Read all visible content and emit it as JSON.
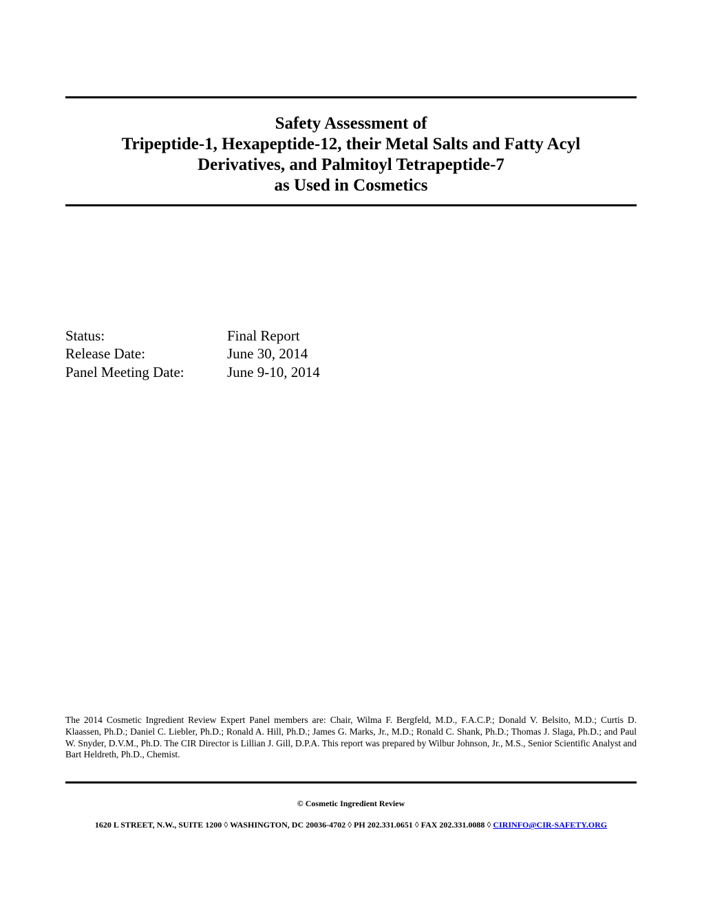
{
  "title": {
    "line1": "Safety Assessment of",
    "line2": "Tripeptide-1, Hexapeptide-12, their Metal Salts and Fatty Acyl",
    "line3": "Derivatives, and Palmitoyl Tetrapeptide-7",
    "line4": "as Used in Cosmetics"
  },
  "meta": {
    "status_label": "Status:",
    "status_value": "Final Report",
    "release_label": "Release Date:",
    "release_value": "June 30, 2014",
    "panel_label": "Panel Meeting Date:",
    "panel_value": "June 9-10, 2014"
  },
  "panel_credit": "The 2014 Cosmetic Ingredient Review Expert Panel members are: Chair, Wilma F. Bergfeld, M.D., F.A.C.P.; Donald V. Belsito, M.D.; Curtis D. Klaassen, Ph.D.; Daniel C. Liebler, Ph.D.; Ronald A. Hill, Ph.D.; James G. Marks, Jr., M.D.; Ronald C. Shank, Ph.D.; Thomas J. Slaga, Ph.D.; and Paul W. Snyder, D.V.M., Ph.D.  The CIR Director is Lillian J. Gill, D.P.A.  This report was prepared by Wilbur Johnson, Jr., M.S., Senior Scientific Analyst and Bart Heldreth, Ph.D., Chemist.",
  "copyright": "© Cosmetic Ingredient Review",
  "address": {
    "part1": "1620 L STREET, N.W., SUITE 1200 ",
    "part2": " WASHINGTON, DC 20036-4702 ",
    "part3": " PH 202.331.0651 ",
    "part4": " FAX 202.331.0088 ",
    "email": "CIRINFO@CIR-SAFETY.ORG",
    "diamond": "◊"
  }
}
